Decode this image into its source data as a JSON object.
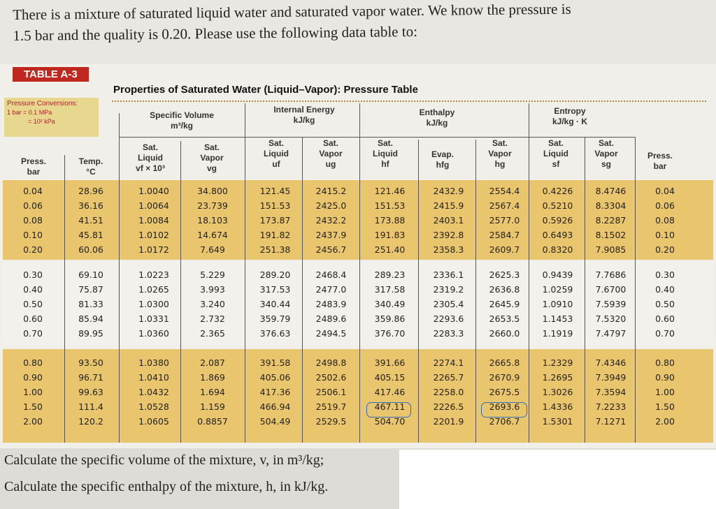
{
  "problem": {
    "line1": "There is a mixture of saturated liquid water and saturated vapor water. We know the pressure is",
    "line2": "1.5 bar and the quality is 0.20. Please use the following data table to:"
  },
  "table": {
    "tag": "TABLE A-3",
    "title": "Properties of Saturated Water (Liquid–Vapor): Pressure Table",
    "conversions": {
      "heading": "Pressure Conversions:",
      "l1": "1 bar = 0.1 MPa",
      "l2": "= 10² kPa"
    },
    "groups": {
      "specific_volume": "Specific Volume",
      "specific_volume_unit": "m³/kg",
      "internal_energy": "Internal Energy",
      "internal_energy_unit": "kJ/kg",
      "enthalpy": "Enthalpy",
      "enthalpy_unit": "kJ/kg",
      "entropy": "Entropy",
      "entropy_unit": "kJ/kg · K"
    },
    "columns": {
      "press": "Press.",
      "press_unit": "bar",
      "temp": "Temp.",
      "temp_unit": "°C",
      "vf": "Sat.",
      "vf2": "Liquid",
      "vf_sym": "vf × 10³",
      "vg": "Sat.",
      "vg2": "Vapor",
      "vg_sym": "vg",
      "uf": "Sat.",
      "uf2": "Liquid",
      "uf_sym": "uf",
      "ug": "Sat.",
      "ug2": "Vapor",
      "ug_sym": "ug",
      "hf": "Sat.",
      "hf2": "Liquid",
      "hf_sym": "hf",
      "hfg": "Evap.",
      "hfg_sym": "hfg",
      "hg": "Sat.",
      "hg2": "Vapor",
      "hg_sym": "hg",
      "sf": "Sat.",
      "sf2": "Liquid",
      "sf_sym": "sf",
      "sg": "Sat.",
      "sg2": "Vapor",
      "sg_sym": "sg",
      "press_r": "Press.",
      "press_r_unit": "bar"
    },
    "rows": [
      [
        "0.04",
        "28.96",
        "1.0040",
        "34.800",
        "121.45",
        "2415.2",
        "121.46",
        "2432.9",
        "2554.4",
        "0.4226",
        "8.4746",
        "0.04"
      ],
      [
        "0.06",
        "36.16",
        "1.0064",
        "23.739",
        "151.53",
        "2425.0",
        "151.53",
        "2415.9",
        "2567.4",
        "0.5210",
        "8.3304",
        "0.06"
      ],
      [
        "0.08",
        "41.51",
        "1.0084",
        "18.103",
        "173.87",
        "2432.2",
        "173.88",
        "2403.1",
        "2577.0",
        "0.5926",
        "8.2287",
        "0.08"
      ],
      [
        "0.10",
        "45.81",
        "1.0102",
        "14.674",
        "191.82",
        "2437.9",
        "191.83",
        "2392.8",
        "2584.7",
        "0.6493",
        "8.1502",
        "0.10"
      ],
      [
        "0.20",
        "60.06",
        "1.0172",
        "7.649",
        "251.38",
        "2456.7",
        "251.40",
        "2358.3",
        "2609.7",
        "0.8320",
        "7.9085",
        "0.20"
      ],
      [
        "0.30",
        "69.10",
        "1.0223",
        "5.229",
        "289.20",
        "2468.4",
        "289.23",
        "2336.1",
        "2625.3",
        "0.9439",
        "7.7686",
        "0.30"
      ],
      [
        "0.40",
        "75.87",
        "1.0265",
        "3.993",
        "317.53",
        "2477.0",
        "317.58",
        "2319.2",
        "2636.8",
        "1.0259",
        "7.6700",
        "0.40"
      ],
      [
        "0.50",
        "81.33",
        "1.0300",
        "3.240",
        "340.44",
        "2483.9",
        "340.49",
        "2305.4",
        "2645.9",
        "1.0910",
        "7.5939",
        "0.50"
      ],
      [
        "0.60",
        "85.94",
        "1.0331",
        "2.732",
        "359.79",
        "2489.6",
        "359.86",
        "2293.6",
        "2653.5",
        "1.1453",
        "7.5320",
        "0.60"
      ],
      [
        "0.70",
        "89.95",
        "1.0360",
        "2.365",
        "376.63",
        "2494.5",
        "376.70",
        "2283.3",
        "2660.0",
        "1.1919",
        "7.4797",
        "0.70"
      ],
      [
        "0.80",
        "93.50",
        "1.0380",
        "2.087",
        "391.58",
        "2498.8",
        "391.66",
        "2274.1",
        "2665.8",
        "1.2329",
        "7.4346",
        "0.80"
      ],
      [
        "0.90",
        "96.71",
        "1.0410",
        "1.869",
        "405.06",
        "2502.6",
        "405.15",
        "2265.7",
        "2670.9",
        "1.2695",
        "7.3949",
        "0.90"
      ],
      [
        "1.00",
        "99.63",
        "1.0432",
        "1.694",
        "417.36",
        "2506.1",
        "417.46",
        "2258.0",
        "2675.5",
        "1.3026",
        "7.3594",
        "1.00"
      ],
      [
        "1.50",
        "111.4",
        "1.0528",
        "1.159",
        "466.94",
        "2519.7",
        "467.11",
        "2226.5",
        "2693.6",
        "1.4336",
        "7.2233",
        "1.50"
      ],
      [
        "2.00",
        "120.2",
        "1.0605",
        "0.8857",
        "504.49",
        "2529.5",
        "504.70",
        "2201.9",
        "2706.7",
        "1.5301",
        "7.1271",
        "2.00"
      ]
    ]
  },
  "questions": {
    "q1": "Calculate the specific volume of the mixture, v, in m³/kg;",
    "q2": "Calculate the specific enthalpy of the mixture, h, in kJ/kg."
  }
}
